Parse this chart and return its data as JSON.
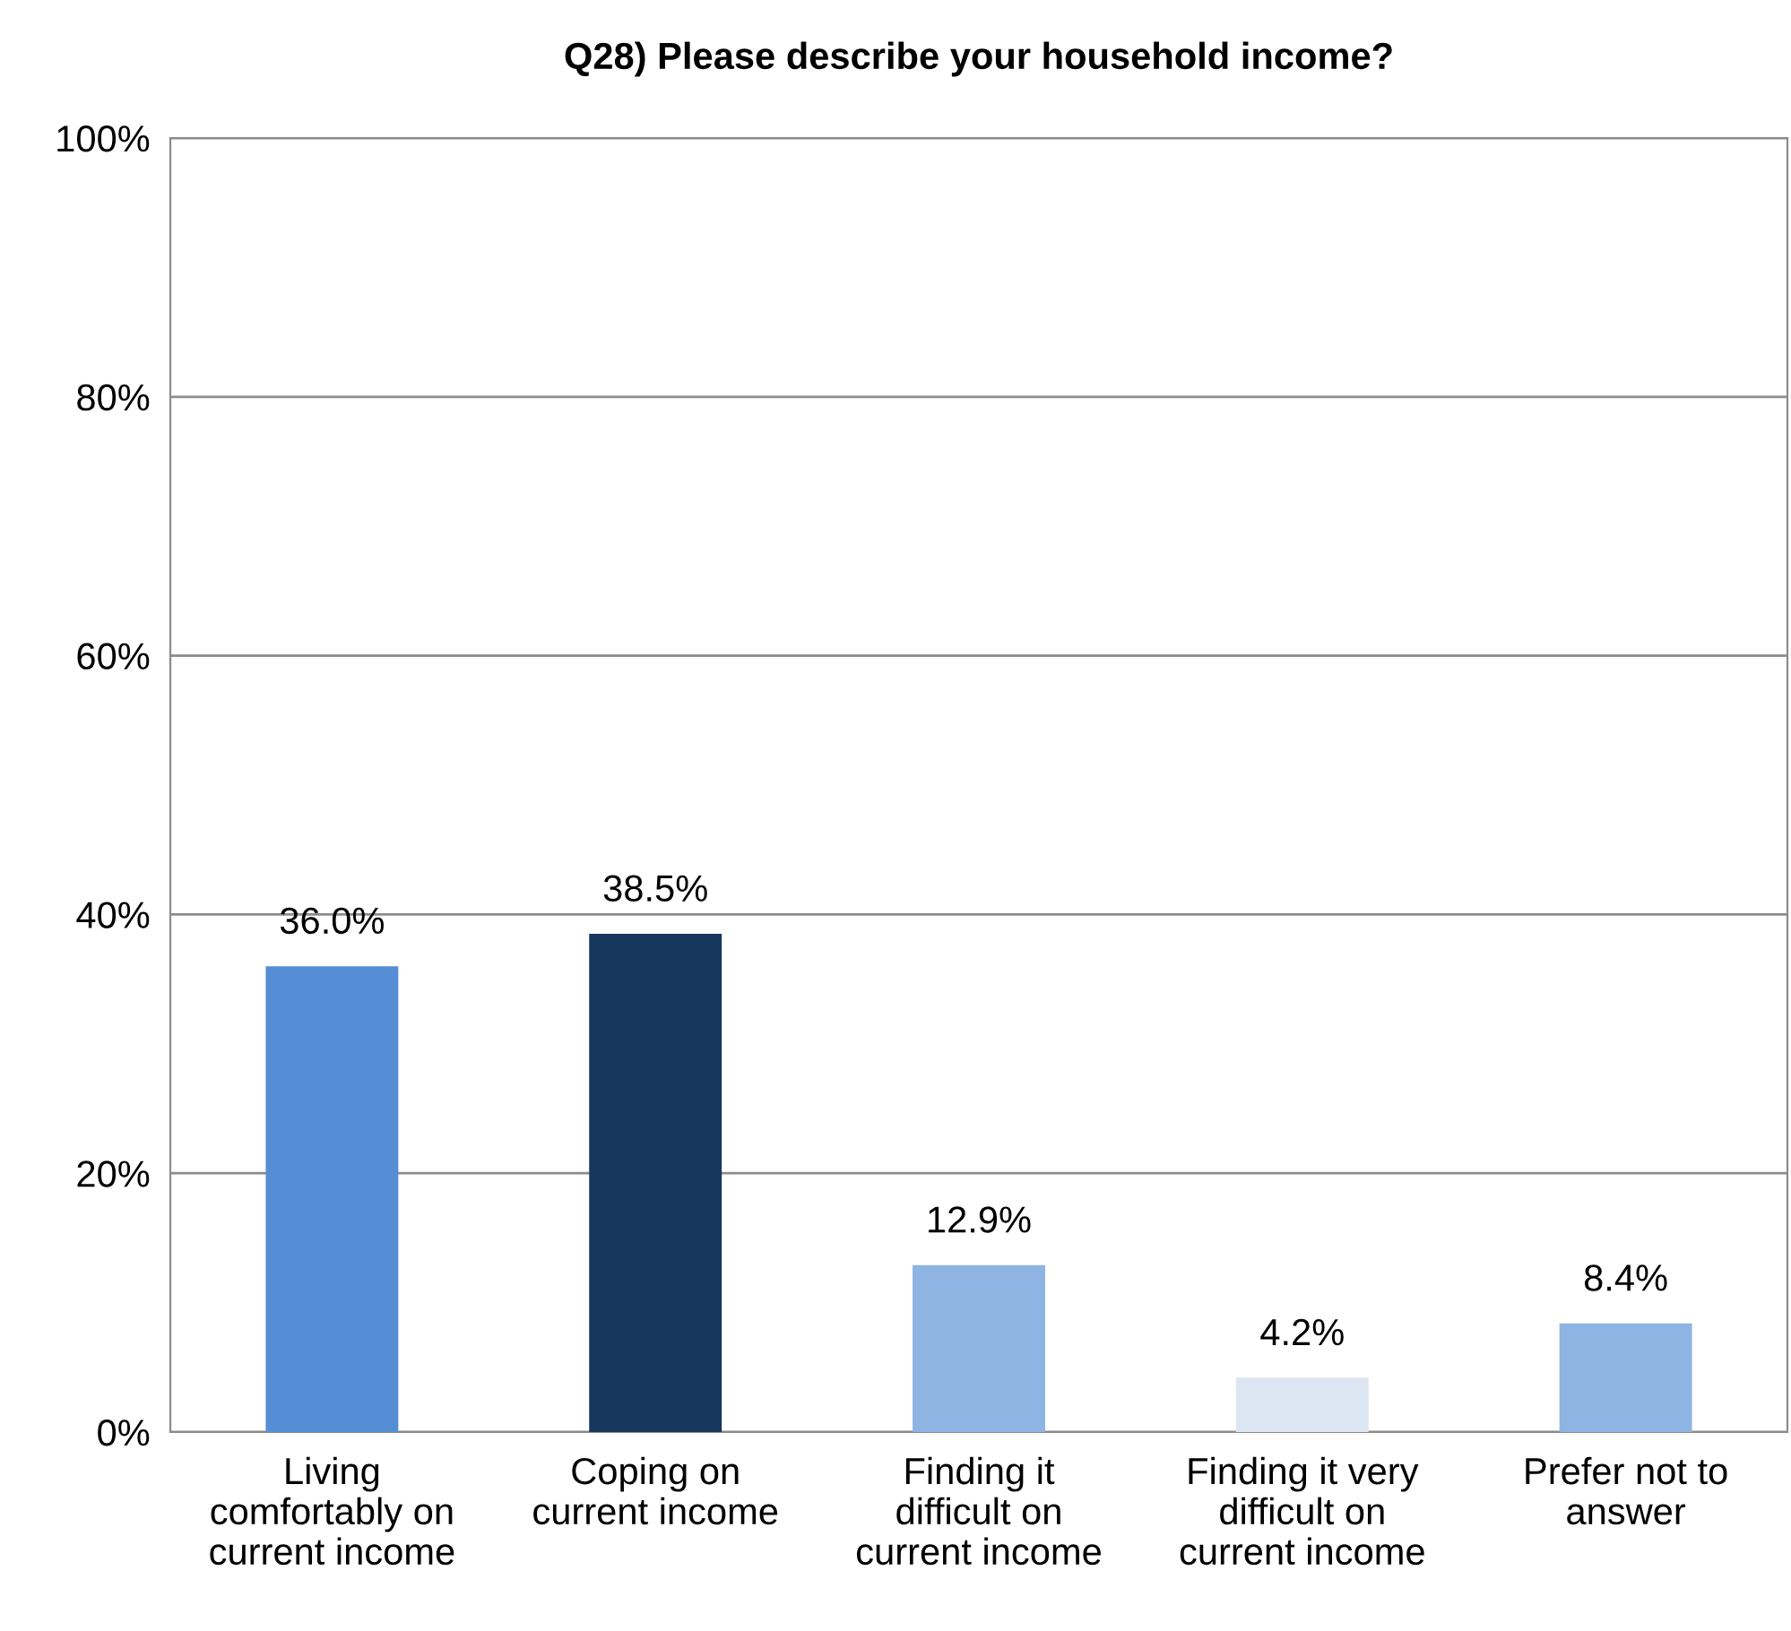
{
  "chart_data": {
    "type": "bar",
    "title": "Q28) Please describe your household income?",
    "categories": [
      "Living\ncomfortably on\ncurrent income",
      "Coping on\ncurrent income",
      "Finding it\ndifficult on\ncurrent income",
      "Finding it very\ndifficult on\ncurrent income",
      "Prefer not to\nanswer"
    ],
    "values": [
      36.0,
      38.5,
      12.9,
      4.2,
      8.4
    ],
    "colors": [
      "#558ed5",
      "#17375e",
      "#8eb4e3",
      "#dce6f2",
      "#8eb4e3"
    ],
    "value_labels": [
      "36.0%",
      "38.5%",
      "12.9%",
      "4.2%",
      "8.4%"
    ],
    "ylim": [
      0,
      100
    ],
    "yticks": [
      {
        "value": 0,
        "label": "0%"
      },
      {
        "value": 20,
        "label": "20%"
      },
      {
        "value": 40,
        "label": "40%"
      },
      {
        "value": 60,
        "label": "60%"
      },
      {
        "value": 80,
        "label": "80%"
      },
      {
        "value": 100,
        "label": "100%"
      }
    ],
    "grid": "y",
    "legend": false
  }
}
